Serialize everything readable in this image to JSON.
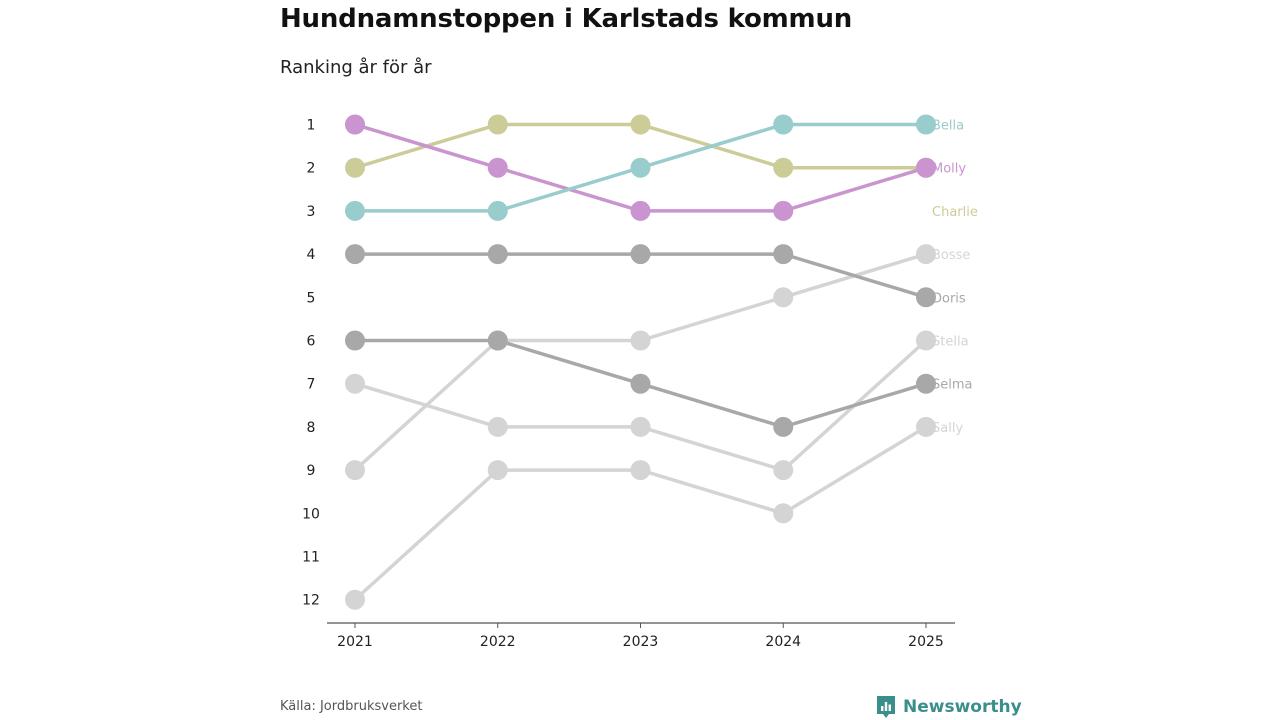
{
  "title": "Hundnamnstoppen i Karlstads kommun",
  "subtitle": "Ranking år för år",
  "source": "Källa: Jordbruksverket",
  "brand": "Newsworthy",
  "colors": {
    "brand": "#3a8f8c",
    "axis": "#555555"
  },
  "chart_data": {
    "type": "line",
    "subtype": "bump",
    "title": "Hundnamnstoppen i Karlstads kommun",
    "subtitle": "Ranking år för år",
    "x": [
      "2021",
      "2022",
      "2023",
      "2024",
      "2025"
    ],
    "y_ticks": [
      "1",
      "2",
      "3",
      "4",
      "5",
      "6",
      "7",
      "8",
      "9",
      "10",
      "11",
      "12"
    ],
    "ylim": [
      1,
      12
    ],
    "y_inverted": true,
    "series": [
      {
        "name": "Sally",
        "color": "#d4d4d4",
        "ranks": [
          12,
          9,
          9,
          10,
          8
        ]
      },
      {
        "name": "Stella",
        "color": "#d4d4d4",
        "ranks": [
          7,
          8,
          8,
          9,
          6
        ]
      },
      {
        "name": "Bosse",
        "color": "#d4d4d4",
        "ranks": [
          9,
          6,
          6,
          5,
          4
        ]
      },
      {
        "name": "Selma",
        "color": "#a8a8a8",
        "ranks": [
          6,
          6,
          7,
          8,
          7
        ]
      },
      {
        "name": "Doris",
        "color": "#a8a8a8",
        "ranks": [
          4,
          4,
          4,
          4,
          5
        ]
      },
      {
        "name": "Charlie",
        "color": "#cccc99",
        "ranks": [
          2,
          1,
          1,
          2,
          2
        ]
      },
      {
        "name": "Molly",
        "color": "#c994cf",
        "ranks": [
          1,
          2,
          3,
          3,
          2
        ]
      },
      {
        "name": "Bella",
        "color": "#99cccc",
        "ranks": [
          3,
          3,
          2,
          1,
          1
        ]
      }
    ],
    "labels": [
      {
        "name": "Bella",
        "rank": 1
      },
      {
        "name": "Molly",
        "rank": 2
      },
      {
        "name": "Charlie",
        "rank": 3
      },
      {
        "name": "Bosse",
        "rank": 4
      },
      {
        "name": "Doris",
        "rank": 5
      },
      {
        "name": "Stella",
        "rank": 6
      },
      {
        "name": "Selma",
        "rank": 7
      },
      {
        "name": "Sally",
        "rank": 8
      }
    ]
  }
}
